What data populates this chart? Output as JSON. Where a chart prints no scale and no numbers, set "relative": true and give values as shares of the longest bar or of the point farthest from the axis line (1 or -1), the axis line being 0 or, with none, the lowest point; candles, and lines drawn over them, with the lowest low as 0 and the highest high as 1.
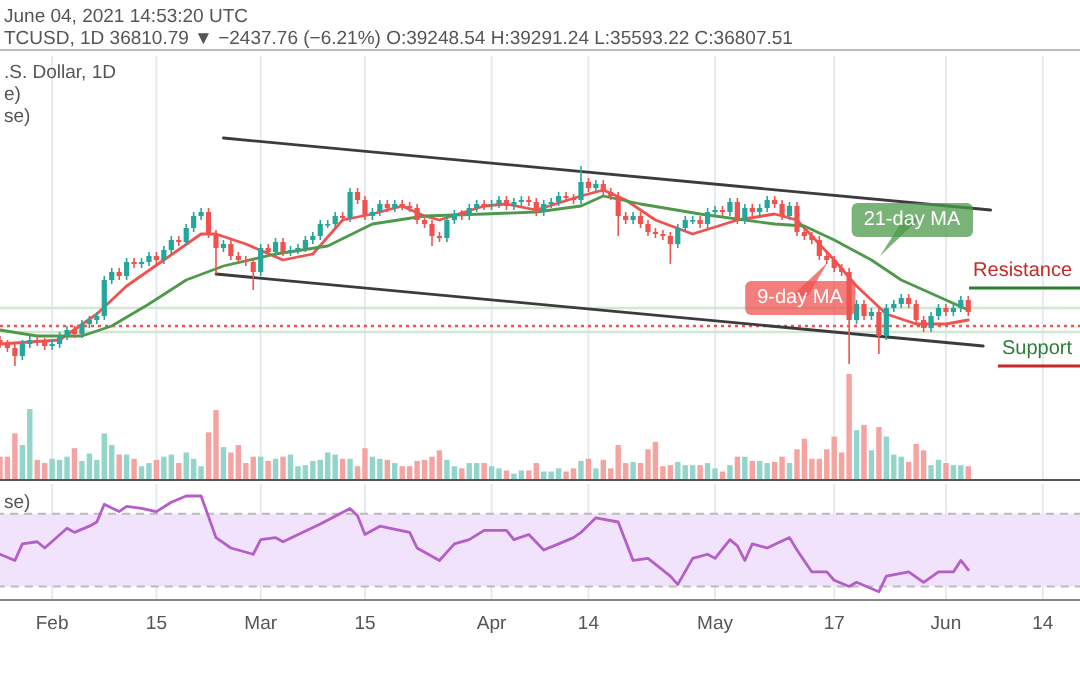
{
  "chart_data": [
    {
      "type": "candlestick",
      "relative": true,
      "grid": "x",
      "tick_labels": false,
      "xlim": [
        "2021-01-25",
        "2021-06-19"
      ],
      "xticks": [
        {
          "value": "2021-02-01",
          "label": null
        },
        {
          "value": "2021-02-15",
          "label": null
        },
        {
          "value": "2021-03-01",
          "label": null
        },
        {
          "value": "2021-03-15",
          "label": null
        },
        {
          "value": "2021-04-01",
          "label": null
        },
        {
          "value": "2021-04-14",
          "label": null
        },
        {
          "value": "2021-05-01",
          "label": null
        },
        {
          "value": "2021-05-17",
          "label": null
        },
        {
          "value": "2021-06-01",
          "label": null
        },
        {
          "value": "2021-06-14",
          "label": null
        }
      ],
      "x": [
        "2021-01-25",
        "2021-01-26",
        "2021-01-27",
        "2021-01-28",
        "2021-01-29",
        "2021-01-30",
        "2021-01-31",
        "2021-02-01",
        "2021-02-02",
        "2021-02-03",
        "2021-02-04",
        "2021-02-05",
        "2021-02-06",
        "2021-02-07",
        "2021-02-08",
        "2021-02-09",
        "2021-02-10",
        "2021-02-11",
        "2021-02-12",
        "2021-02-13",
        "2021-02-14",
        "2021-02-15",
        "2021-02-16",
        "2021-02-17",
        "2021-02-18",
        "2021-02-19",
        "2021-02-20",
        "2021-02-21",
        "2021-02-22",
        "2021-02-23",
        "2021-02-24",
        "2021-02-25",
        "2021-02-26",
        "2021-02-27",
        "2021-02-28",
        "2021-03-01",
        "2021-03-02",
        "2021-03-03",
        "2021-03-04",
        "2021-03-05",
        "2021-03-06",
        "2021-03-07",
        "2021-03-08",
        "2021-03-09",
        "2021-03-10",
        "2021-03-11",
        "2021-03-12",
        "2021-03-13",
        "2021-03-14",
        "2021-03-15",
        "2021-03-16",
        "2021-03-17",
        "2021-03-18",
        "2021-03-19",
        "2021-03-20",
        "2021-03-21",
        "2021-03-22",
        "2021-03-23",
        "2021-03-24",
        "2021-03-25",
        "2021-03-26",
        "2021-03-27",
        "2021-03-28",
        "2021-03-29",
        "2021-03-30",
        "2021-03-31",
        "2021-04-01",
        "2021-04-02",
        "2021-04-03",
        "2021-04-04",
        "2021-04-05",
        "2021-04-06",
        "2021-04-07",
        "2021-04-08",
        "2021-04-09",
        "2021-04-10",
        "2021-04-11",
        "2021-04-12",
        "2021-04-13",
        "2021-04-14",
        "2021-04-15",
        "2021-04-16",
        "2021-04-17",
        "2021-04-18",
        "2021-04-19",
        "2021-04-20",
        "2021-04-21",
        "2021-04-22",
        "2021-04-23",
        "2021-04-24",
        "2021-04-25",
        "2021-04-26",
        "2021-04-27",
        "2021-04-28",
        "2021-04-29",
        "2021-04-30",
        "2021-05-01",
        "2021-05-02",
        "2021-05-03",
        "2021-05-04",
        "2021-05-05",
        "2021-05-06",
        "2021-05-07",
        "2021-05-08",
        "2021-05-09",
        "2021-05-10",
        "2021-05-11",
        "2021-05-12",
        "2021-05-13",
        "2021-05-14",
        "2021-05-15",
        "2021-05-16",
        "2021-05-17",
        "2021-05-18",
        "2021-05-19",
        "2021-05-20",
        "2021-05-21",
        "2021-05-22",
        "2021-05-23",
        "2021-05-24",
        "2021-05-25",
        "2021-05-26",
        "2021-05-27",
        "2021-05-28",
        "2021-05-29",
        "2021-05-30",
        "2021-05-31",
        "2021-06-01",
        "2021-06-02",
        "2021-06-03",
        "2021-06-04"
      ],
      "ohlc": [
        [
          0.13,
          0.15,
          0.09,
          0.11
        ],
        [
          0.11,
          0.13,
          0.07,
          0.09
        ],
        [
          0.09,
          0.11,
          0,
          0.05
        ],
        [
          0.05,
          0.13,
          0.03,
          0.11
        ],
        [
          0.11,
          0.15,
          0.09,
          0.13
        ],
        [
          0.13,
          0.15,
          0.1,
          0.12
        ],
        [
          0.12,
          0.14,
          0.08,
          0.1
        ],
        [
          0.1,
          0.13,
          0.08,
          0.11
        ],
        [
          0.11,
          0.17,
          0.09,
          0.15
        ],
        [
          0.15,
          0.2,
          0.13,
          0.18
        ],
        [
          0.18,
          0.2,
          0.14,
          0.16
        ],
        [
          0.16,
          0.23,
          0.14,
          0.21
        ],
        [
          0.21,
          0.25,
          0.19,
          0.23
        ],
        [
          0.23,
          0.27,
          0.21,
          0.25
        ],
        [
          0.25,
          0.45,
          0.23,
          0.43
        ],
        [
          0.43,
          0.49,
          0.41,
          0.47
        ],
        [
          0.47,
          0.49,
          0.43,
          0.45
        ],
        [
          0.45,
          0.54,
          0.43,
          0.52
        ],
        [
          0.52,
          0.54,
          0.49,
          0.51
        ],
        [
          0.51,
          0.54,
          0.49,
          0.52
        ],
        [
          0.52,
          0.57,
          0.5,
          0.55
        ],
        [
          0.55,
          0.57,
          0.51,
          0.53
        ],
        [
          0.53,
          0.6,
          0.51,
          0.58
        ],
        [
          0.58,
          0.65,
          0.56,
          0.63
        ],
        [
          0.63,
          0.65,
          0.6,
          0.62
        ],
        [
          0.62,
          0.71,
          0.6,
          0.69
        ],
        [
          0.69,
          0.77,
          0.67,
          0.75
        ],
        [
          0.75,
          0.79,
          0.73,
          0.77
        ],
        [
          0.77,
          0.79,
          0.64,
          0.66
        ],
        [
          0.66,
          0.68,
          0.46,
          0.59
        ],
        [
          0.59,
          0.63,
          0.57,
          0.61
        ],
        [
          0.61,
          0.63,
          0.53,
          0.55
        ],
        [
          0.55,
          0.57,
          0.51,
          0.53
        ],
        [
          0.53,
          0.55,
          0.5,
          0.52
        ],
        [
          0.52,
          0.54,
          0.38,
          0.47
        ],
        [
          0.47,
          0.61,
          0.45,
          0.59
        ],
        [
          0.59,
          0.61,
          0.55,
          0.57
        ],
        [
          0.57,
          0.64,
          0.55,
          0.62
        ],
        [
          0.62,
          0.64,
          0.55,
          0.57
        ],
        [
          0.57,
          0.6,
          0.55,
          0.58
        ],
        [
          0.58,
          0.61,
          0.56,
          0.59
        ],
        [
          0.59,
          0.65,
          0.57,
          0.63
        ],
        [
          0.63,
          0.67,
          0.61,
          0.65
        ],
        [
          0.65,
          0.73,
          0.63,
          0.71
        ],
        [
          0.71,
          0.73,
          0.69,
          0.71
        ],
        [
          0.71,
          0.77,
          0.69,
          0.75
        ],
        [
          0.75,
          0.77,
          0.72,
          0.74
        ],
        [
          0.74,
          0.89,
          0.72,
          0.87
        ],
        [
          0.87,
          0.89,
          0.81,
          0.83
        ],
        [
          0.83,
          0.85,
          0.73,
          0.75
        ],
        [
          0.75,
          0.79,
          0.73,
          0.77
        ],
        [
          0.77,
          0.83,
          0.75,
          0.81
        ],
        [
          0.81,
          0.83,
          0.77,
          0.79
        ],
        [
          0.79,
          0.83,
          0.77,
          0.81
        ],
        [
          0.81,
          0.83,
          0.78,
          0.8
        ],
        [
          0.8,
          0.82,
          0.77,
          0.79
        ],
        [
          0.79,
          0.81,
          0.71,
          0.73
        ],
        [
          0.73,
          0.75,
          0.69,
          0.71
        ],
        [
          0.71,
          0.73,
          0.6,
          0.65
        ],
        [
          0.65,
          0.67,
          0.62,
          0.64
        ],
        [
          0.64,
          0.75,
          0.62,
          0.73
        ],
        [
          0.73,
          0.78,
          0.71,
          0.76
        ],
        [
          0.76,
          0.78,
          0.73,
          0.75
        ],
        [
          0.75,
          0.81,
          0.73,
          0.79
        ],
        [
          0.79,
          0.83,
          0.77,
          0.81
        ],
        [
          0.81,
          0.83,
          0.78,
          0.8
        ],
        [
          0.8,
          0.83,
          0.78,
          0.81
        ],
        [
          0.81,
          0.85,
          0.79,
          0.83
        ],
        [
          0.83,
          0.85,
          0.78,
          0.8
        ],
        [
          0.8,
          0.84,
          0.78,
          0.82
        ],
        [
          0.82,
          0.85,
          0.8,
          0.83
        ],
        [
          0.83,
          0.85,
          0.8,
          0.82
        ],
        [
          0.82,
          0.84,
          0.75,
          0.77
        ],
        [
          0.77,
          0.83,
          0.75,
          0.81
        ],
        [
          0.81,
          0.84,
          0.79,
          0.82
        ],
        [
          0.82,
          0.87,
          0.8,
          0.85
        ],
        [
          0.85,
          0.87,
          0.82,
          0.84
        ],
        [
          0.84,
          0.86,
          0.81,
          0.83
        ],
        [
          0.83,
          1,
          0.81,
          0.92
        ],
        [
          0.92,
          0.94,
          0.87,
          0.89
        ],
        [
          0.89,
          0.93,
          0.87,
          0.91
        ],
        [
          0.91,
          0.93,
          0.85,
          0.87
        ],
        [
          0.87,
          0.89,
          0.83,
          0.85
        ],
        [
          0.85,
          0.87,
          0.65,
          0.75
        ],
        [
          0.75,
          0.77,
          0.71,
          0.73
        ],
        [
          0.73,
          0.77,
          0.71,
          0.75
        ],
        [
          0.75,
          0.77,
          0.69,
          0.71
        ],
        [
          0.71,
          0.73,
          0.65,
          0.67
        ],
        [
          0.67,
          0.69,
          0.64,
          0.66
        ],
        [
          0.66,
          0.68,
          0.63,
          0.65
        ],
        [
          0.65,
          0.67,
          0.51,
          0.61
        ],
        [
          0.61,
          0.71,
          0.59,
          0.69
        ],
        [
          0.69,
          0.75,
          0.67,
          0.73
        ],
        [
          0.73,
          0.75,
          0.71,
          0.73
        ],
        [
          0.73,
          0.75,
          0.69,
          0.71
        ],
        [
          0.71,
          0.79,
          0.69,
          0.77
        ],
        [
          0.77,
          0.8,
          0.75,
          0.78
        ],
        [
          0.78,
          0.8,
          0.75,
          0.77
        ],
        [
          0.77,
          0.84,
          0.75,
          0.82
        ],
        [
          0.82,
          0.84,
          0.71,
          0.73
        ],
        [
          0.73,
          0.81,
          0.71,
          0.79
        ],
        [
          0.79,
          0.81,
          0.75,
          0.77
        ],
        [
          0.77,
          0.81,
          0.75,
          0.79
        ],
        [
          0.79,
          0.85,
          0.77,
          0.83
        ],
        [
          0.83,
          0.85,
          0.79,
          0.81
        ],
        [
          0.81,
          0.83,
          0.73,
          0.75
        ],
        [
          0.75,
          0.82,
          0.73,
          0.8
        ],
        [
          0.8,
          0.82,
          0.65,
          0.67
        ],
        [
          0.67,
          0.69,
          0.63,
          0.65
        ],
        [
          0.65,
          0.67,
          0.61,
          0.63
        ],
        [
          0.63,
          0.65,
          0.53,
          0.55
        ],
        [
          0.55,
          0.57,
          0.51,
          0.53
        ],
        [
          0.53,
          0.55,
          0.47,
          0.49
        ],
        [
          0.49,
          0.51,
          0.45,
          0.47
        ],
        [
          0.47,
          0.49,
          0.01,
          0.23
        ],
        [
          0.23,
          0.33,
          0.21,
          0.31
        ],
        [
          0.31,
          0.33,
          0.23,
          0.25
        ],
        [
          0.25,
          0.29,
          0.23,
          0.27
        ],
        [
          0.27,
          0.29,
          0.06,
          0.15
        ],
        [
          0.15,
          0.31,
          0.13,
          0.29
        ],
        [
          0.29,
          0.33,
          0.27,
          0.31
        ],
        [
          0.31,
          0.36,
          0.29,
          0.34
        ],
        [
          0.34,
          0.36,
          0.29,
          0.31
        ],
        [
          0.31,
          0.33,
          0.21,
          0.23
        ],
        [
          0.23,
          0.25,
          0.17,
          0.19
        ],
        [
          0.19,
          0.27,
          0.17,
          0.25
        ],
        [
          0.25,
          0.31,
          0.23,
          0.29
        ],
        [
          0.29,
          0.31,
          0.25,
          0.27
        ],
        [
          0.27,
          0.31,
          0.25,
          0.29
        ],
        [
          0.29,
          0.35,
          0.27,
          0.33
        ],
        [
          0.33,
          0.35,
          0.25,
          0.27
        ]
      ],
      "series": [
        {
          "type": "line",
          "name": "9-day MA",
          "color": "#ef5350",
          "x": [
            "2021-01-25",
            "2021-02-02",
            "2021-02-07",
            "2021-02-11",
            "2021-02-16",
            "2021-02-21",
            "2021-02-23",
            "2021-02-27",
            "2021-03-04",
            "2021-03-08",
            "2021-03-12",
            "2021-03-16",
            "2021-03-20",
            "2021-03-23",
            "2021-03-25",
            "2021-03-31",
            "2021-04-03",
            "2021-04-07",
            "2021-04-13",
            "2021-04-16",
            "2021-04-19",
            "2021-04-23",
            "2021-04-28",
            "2021-05-04",
            "2021-05-09",
            "2021-05-12",
            "2021-05-17",
            "2021-05-20",
            "2021-05-24",
            "2021-05-28",
            "2021-06-01",
            "2021-06-04"
          ],
          "values": [
            0.11,
            0.13,
            0.26,
            0.4,
            0.53,
            0.66,
            0.66,
            0.61,
            0.53,
            0.56,
            0.73,
            0.76,
            0.8,
            0.75,
            0.73,
            0.8,
            0.81,
            0.78,
            0.85,
            0.88,
            0.83,
            0.73,
            0.66,
            0.73,
            0.76,
            0.73,
            0.53,
            0.4,
            0.26,
            0.21,
            0.21,
            0.23
          ]
        },
        {
          "type": "line",
          "name": "21-day MA",
          "color": "#4e9a4a",
          "x": [
            "2021-01-25",
            "2021-01-30",
            "2021-02-05",
            "2021-02-09",
            "2021-02-14",
            "2021-02-19",
            "2021-02-24",
            "2021-03-03",
            "2021-03-10",
            "2021-03-16",
            "2021-03-23",
            "2021-03-31",
            "2021-04-07",
            "2021-04-13",
            "2021-04-16",
            "2021-04-21",
            "2021-04-29",
            "2021-05-09",
            "2021-05-13",
            "2021-05-17",
            "2021-05-22",
            "2021-05-26",
            "2021-06-01",
            "2021-06-04"
          ],
          "values": [
            0.18,
            0.15,
            0.15,
            0.2,
            0.31,
            0.43,
            0.5,
            0.56,
            0.6,
            0.71,
            0.75,
            0.76,
            0.77,
            0.8,
            0.85,
            0.81,
            0.76,
            0.71,
            0.7,
            0.63,
            0.53,
            0.43,
            0.33,
            0.28
          ]
        },
        {
          "type": "line",
          "color": "#3c3c3c",
          "x": [
            "2021-02-24",
            "2021-06-07"
          ],
          "values": [
            1.14,
            0.78
          ]
        },
        {
          "type": "line",
          "color": "#3c3c3c",
          "x": [
            "2021-02-23",
            "2021-06-06"
          ],
          "values": [
            0.46,
            0.1
          ]
        }
      ],
      "ref_lines": [
        {
          "axis": "y",
          "value": 0.29,
          "color": "#cfe8cf"
        },
        {
          "axis": "y",
          "value": 0.17,
          "color": "#cfe8cf"
        },
        {
          "axis": "y",
          "value": 0.2,
          "color": "#ef5350",
          "line_style": "dotted"
        }
      ],
      "annotations": [
        "June 04, 2021 14:53:20 UTC",
        "TCUSD, 1D  36810.79 ▼ −2437.76 (−6.21%) O:39248.54 H:39291.24 L:35593.22 C:36807.51",
        ".S. Dollar, 1D",
        "e)",
        "se)",
        "Resistance",
        "Support"
      ]
    },
    {
      "type": "bar",
      "relative": true,
      "grid": "x",
      "tick_labels": false,
      "xlim": [
        "2021-01-25",
        "2021-06-19"
      ],
      "xticks": [
        {
          "value": "2021-02-01",
          "label": null
        },
        {
          "value": "2021-02-15",
          "label": null
        },
        {
          "value": "2021-03-01",
          "label": null
        },
        {
          "value": "2021-03-15",
          "label": null
        },
        {
          "value": "2021-04-01",
          "label": null
        },
        {
          "value": "2021-04-14",
          "label": null
        },
        {
          "value": "2021-05-01",
          "label": null
        },
        {
          "value": "2021-05-17",
          "label": null
        },
        {
          "value": "2021-06-01",
          "label": null
        },
        {
          "value": "2021-06-14",
          "label": null
        }
      ],
      "x": [
        "2021-01-25",
        "2021-01-26",
        "2021-01-27",
        "2021-01-28",
        "2021-01-29",
        "2021-01-30",
        "2021-01-31",
        "2021-02-01",
        "2021-02-02",
        "2021-02-03",
        "2021-02-04",
        "2021-02-05",
        "2021-02-06",
        "2021-02-07",
        "2021-02-08",
        "2021-02-09",
        "2021-02-10",
        "2021-02-11",
        "2021-02-12",
        "2021-02-13",
        "2021-02-14",
        "2021-02-15",
        "2021-02-16",
        "2021-02-17",
        "2021-02-18",
        "2021-02-19",
        "2021-02-20",
        "2021-02-21",
        "2021-02-22",
        "2021-02-23",
        "2021-02-24",
        "2021-02-25",
        "2021-02-26",
        "2021-02-27",
        "2021-02-28",
        "2021-03-01",
        "2021-03-02",
        "2021-03-03",
        "2021-03-04",
        "2021-03-05",
        "2021-03-06",
        "2021-03-07",
        "2021-03-08",
        "2021-03-09",
        "2021-03-10",
        "2021-03-11",
        "2021-03-12",
        "2021-03-13",
        "2021-03-14",
        "2021-03-15",
        "2021-03-16",
        "2021-03-17",
        "2021-03-18",
        "2021-03-19",
        "2021-03-20",
        "2021-03-21",
        "2021-03-22",
        "2021-03-23",
        "2021-03-24",
        "2021-03-25",
        "2021-03-26",
        "2021-03-27",
        "2021-03-28",
        "2021-03-29",
        "2021-03-30",
        "2021-03-31",
        "2021-04-01",
        "2021-04-02",
        "2021-04-03",
        "2021-04-04",
        "2021-04-05",
        "2021-04-06",
        "2021-04-07",
        "2021-04-08",
        "2021-04-09",
        "2021-04-10",
        "2021-04-11",
        "2021-04-12",
        "2021-04-13",
        "2021-04-14",
        "2021-04-15",
        "2021-04-16",
        "2021-04-17",
        "2021-04-18",
        "2021-04-19",
        "2021-04-20",
        "2021-04-21",
        "2021-04-22",
        "2021-04-23",
        "2021-04-24",
        "2021-04-25",
        "2021-04-26",
        "2021-04-27",
        "2021-04-28",
        "2021-04-29",
        "2021-04-30",
        "2021-05-01",
        "2021-05-02",
        "2021-05-03",
        "2021-05-04",
        "2021-05-05",
        "2021-05-06",
        "2021-05-07",
        "2021-05-08",
        "2021-05-09",
        "2021-05-10",
        "2021-05-11",
        "2021-05-12",
        "2021-05-13",
        "2021-05-14",
        "2021-05-15",
        "2021-05-16",
        "2021-05-17",
        "2021-05-18",
        "2021-05-19",
        "2021-05-20",
        "2021-05-21",
        "2021-05-22",
        "2021-05-23",
        "2021-05-24",
        "2021-05-25",
        "2021-05-26",
        "2021-05-27",
        "2021-05-28",
        "2021-05-29",
        "2021-05-30",
        "2021-05-31",
        "2021-06-01",
        "2021-06-02",
        "2021-06-03",
        "2021-06-04"
      ],
      "values": [
        0.22,
        0.22,
        0.44,
        0.33,
        0.67,
        0.19,
        0.16,
        0.2,
        0.19,
        0.22,
        0.3,
        0.18,
        0.25,
        0.19,
        0.44,
        0.33,
        0.24,
        0.24,
        0.2,
        0.13,
        0.16,
        0.19,
        0.22,
        0.24,
        0.16,
        0.26,
        0.2,
        0.13,
        0.45,
        0.66,
        0.31,
        0.26,
        0.33,
        0.16,
        0.22,
        0.22,
        0.18,
        0.2,
        0.22,
        0.24,
        0.13,
        0.14,
        0.18,
        0.19,
        0.26,
        0.24,
        0.2,
        0.2,
        0.13,
        0.3,
        0.22,
        0.2,
        0.19,
        0.16,
        0.13,
        0.13,
        0.18,
        0.19,
        0.22,
        0.28,
        0.19,
        0.13,
        0.11,
        0.16,
        0.16,
        0.16,
        0.13,
        0.11,
        0.09,
        0.06,
        0.09,
        0.09,
        0.16,
        0.08,
        0.08,
        0.11,
        0.08,
        0.11,
        0.18,
        0.2,
        0.11,
        0.19,
        0.11,
        0.33,
        0.16,
        0.17,
        0.16,
        0.29,
        0.36,
        0.13,
        0.14,
        0.17,
        0.14,
        0.14,
        0.14,
        0.16,
        0.11,
        0.08,
        0.14,
        0.22,
        0.22,
        0.18,
        0.18,
        0.16,
        0.17,
        0.22,
        0.16,
        0.29,
        0.39,
        0.2,
        0.2,
        0.29,
        0.41,
        0.26,
        1,
        0.47,
        0.52,
        0.28,
        0.5,
        0.41,
        0.24,
        0.22,
        0.17,
        0.34,
        0.28,
        0.14,
        0.19,
        0.16,
        0.14,
        0.14,
        0.13
      ],
      "colors": [
        "#f5a3a0",
        "#f5a3a0",
        "#f5a3a0",
        "#94d5cb",
        "#94d5cb",
        "#f5a3a0",
        "#f5a3a0",
        "#94d5cb",
        "#94d5cb",
        "#94d5cb",
        "#f5a3a0",
        "#94d5cb",
        "#94d5cb",
        "#94d5cb",
        "#94d5cb",
        "#94d5cb",
        "#f5a3a0",
        "#94d5cb",
        "#f5a3a0",
        "#94d5cb",
        "#94d5cb",
        "#f5a3a0",
        "#94d5cb",
        "#94d5cb",
        "#f5a3a0",
        "#94d5cb",
        "#94d5cb",
        "#94d5cb",
        "#f5a3a0",
        "#f5a3a0",
        "#94d5cb",
        "#f5a3a0",
        "#f5a3a0",
        "#f5a3a0",
        "#f5a3a0",
        "#94d5cb",
        "#f5a3a0",
        "#94d5cb",
        "#f5a3a0",
        "#94d5cb",
        "#94d5cb",
        "#94d5cb",
        "#94d5cb",
        "#94d5cb",
        "#94d5cb",
        "#94d5cb",
        "#f5a3a0",
        "#94d5cb",
        "#f5a3a0",
        "#f5a3a0",
        "#94d5cb",
        "#94d5cb",
        "#f5a3a0",
        "#94d5cb",
        "#f5a3a0",
        "#f5a3a0",
        "#f5a3a0",
        "#f5a3a0",
        "#f5a3a0",
        "#f5a3a0",
        "#94d5cb",
        "#94d5cb",
        "#f5a3a0",
        "#94d5cb",
        "#94d5cb",
        "#f5a3a0",
        "#94d5cb",
        "#94d5cb",
        "#f5a3a0",
        "#94d5cb",
        "#94d5cb",
        "#f5a3a0",
        "#f5a3a0",
        "#94d5cb",
        "#94d5cb",
        "#94d5cb",
        "#f5a3a0",
        "#f5a3a0",
        "#94d5cb",
        "#f5a3a0",
        "#94d5cb",
        "#f5a3a0",
        "#f5a3a0",
        "#f5a3a0",
        "#f5a3a0",
        "#94d5cb",
        "#f5a3a0",
        "#f5a3a0",
        "#f5a3a0",
        "#f5a3a0",
        "#f5a3a0",
        "#94d5cb",
        "#94d5cb",
        "#94d5cb",
        "#f5a3a0",
        "#94d5cb",
        "#94d5cb",
        "#f5a3a0",
        "#94d5cb",
        "#f5a3a0",
        "#94d5cb",
        "#f5a3a0",
        "#94d5cb",
        "#94d5cb",
        "#f5a3a0",
        "#f5a3a0",
        "#94d5cb",
        "#f5a3a0",
        "#f5a3a0",
        "#f5a3a0",
        "#f5a3a0",
        "#f5a3a0",
        "#f5a3a0",
        "#f5a3a0",
        "#f5a3a0",
        "#94d5cb",
        "#f5a3a0",
        "#94d5cb",
        "#f5a3a0",
        "#94d5cb",
        "#94d5cb",
        "#94d5cb",
        "#f5a3a0",
        "#f5a3a0",
        "#f5a3a0",
        "#94d5cb",
        "#94d5cb",
        "#f5a3a0",
        "#94d5cb",
        "#94d5cb",
        "#f5a3a0"
      ]
    },
    {
      "type": "line",
      "relative": true,
      "grid": "x",
      "tick_labels": "x",
      "color": "#b45fc9",
      "xlim": [
        "2021-01-25",
        "2021-06-19"
      ],
      "xticks": [
        {
          "value": "2021-02-01",
          "label": "Feb"
        },
        {
          "value": "2021-02-15",
          "label": "15"
        },
        {
          "value": "2021-03-01",
          "label": "Mar"
        },
        {
          "value": "2021-03-15",
          "label": "15"
        },
        {
          "value": "2021-04-01",
          "label": "Apr"
        },
        {
          "value": "2021-04-14",
          "label": "14"
        },
        {
          "value": "2021-05-01",
          "label": "May"
        },
        {
          "value": "2021-05-17",
          "label": "17"
        },
        {
          "value": "2021-06-01",
          "label": "Jun"
        },
        {
          "value": "2021-06-14",
          "label": "14"
        }
      ],
      "x": [
        "2021-01-25",
        "2021-01-27",
        "2021-01-28",
        "2021-01-30",
        "2021-01-31",
        "2021-02-03",
        "2021-02-04",
        "2021-02-06",
        "2021-02-07",
        "2021-02-08",
        "2021-02-10",
        "2021-02-11",
        "2021-02-13",
        "2021-02-15",
        "2021-02-17",
        "2021-02-19",
        "2021-02-21",
        "2021-02-23",
        "2021-02-25",
        "2021-02-28",
        "2021-03-01",
        "2021-03-03",
        "2021-03-04",
        "2021-03-09",
        "2021-03-13",
        "2021-03-14",
        "2021-03-15",
        "2021-03-17",
        "2021-03-21",
        "2021-03-22",
        "2021-03-25",
        "2021-03-27",
        "2021-03-29",
        "2021-03-31",
        "2021-04-03",
        "2021-04-04",
        "2021-04-06",
        "2021-04-08",
        "2021-04-10",
        "2021-04-12",
        "2021-04-13",
        "2021-04-15",
        "2021-04-18",
        "2021-04-20",
        "2021-04-22",
        "2021-04-25",
        "2021-04-26",
        "2021-04-28",
        "2021-04-30",
        "2021-05-01",
        "2021-05-03",
        "2021-05-04",
        "2021-05-05",
        "2021-05-06",
        "2021-05-08",
        "2021-05-11",
        "2021-05-12",
        "2021-05-14",
        "2021-05-16",
        "2021-05-17",
        "2021-05-19",
        "2021-05-20",
        "2021-05-23",
        "2021-05-24",
        "2021-05-27",
        "2021-05-29",
        "2021-05-31",
        "2021-06-02",
        "2021-06-03",
        "2021-06-04"
      ],
      "values": [
        0.44,
        0.38,
        0.54,
        0.56,
        0.5,
        0.69,
        0.65,
        0.71,
        0.75,
        0.92,
        0.85,
        0.9,
        0.88,
        0.85,
        0.94,
        1,
        1,
        0.6,
        0.5,
        0.44,
        0.58,
        0.6,
        0.56,
        0.73,
        0.88,
        0.81,
        0.63,
        0.71,
        0.65,
        0.5,
        0.38,
        0.54,
        0.58,
        0.67,
        0.67,
        0.58,
        0.63,
        0.48,
        0.54,
        0.6,
        0.65,
        0.79,
        0.75,
        0.38,
        0.4,
        0.23,
        0.15,
        0.4,
        0.44,
        0.4,
        0.58,
        0.52,
        0.38,
        0.54,
        0.5,
        0.6,
        0.48,
        0.27,
        0.27,
        0.19,
        0.13,
        0.17,
        0.08,
        0.23,
        0.27,
        0.17,
        0.27,
        0.27,
        0.38,
        0.29
      ],
      "bands": [
        {
          "axis": "y",
          "from": 0.13,
          "to": 0.83,
          "color": "#f1e3fb"
        }
      ],
      "annotations": [
        "se)"
      ]
    }
  ]
}
